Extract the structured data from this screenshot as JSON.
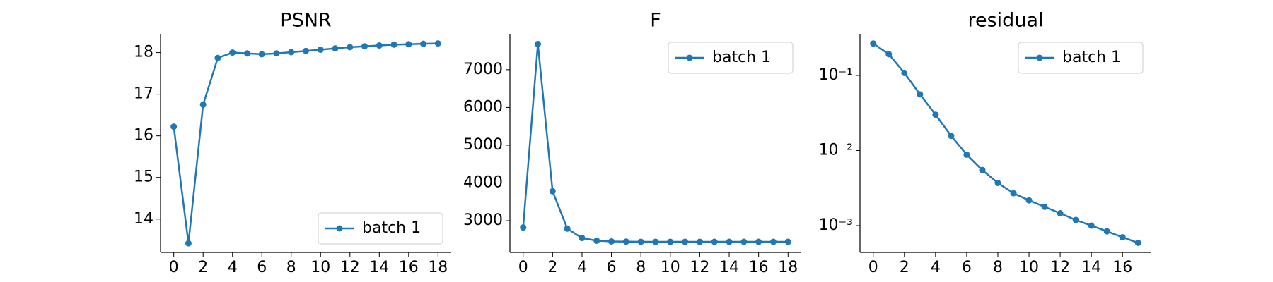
{
  "chart_data": [
    {
      "type": "line",
      "title": "PSNR",
      "x": [
        0,
        1,
        2,
        3,
        4,
        5,
        6,
        7,
        8,
        9,
        10,
        11,
        12,
        13,
        14,
        15,
        16,
        17,
        18
      ],
      "series": [
        {
          "name": "batch 1",
          "color": "#1f77b4",
          "values": [
            16.22,
            13.42,
            16.75,
            17.87,
            18.0,
            17.98,
            17.96,
            17.98,
            18.01,
            18.04,
            18.07,
            18.1,
            18.13,
            18.15,
            18.17,
            18.19,
            18.2,
            18.21,
            18.22
          ]
        }
      ],
      "xlim": [
        -0.9,
        18.9
      ],
      "xticks": [
        0,
        2,
        4,
        6,
        8,
        10,
        12,
        14,
        16,
        18
      ],
      "ylim": [
        13.2,
        18.45
      ],
      "yticks": [
        14,
        15,
        16,
        17,
        18
      ],
      "legend": "lower right"
    },
    {
      "type": "line",
      "title": "F",
      "x": [
        0,
        1,
        2,
        3,
        4,
        5,
        6,
        7,
        8,
        9,
        10,
        11,
        12,
        13,
        14,
        15,
        16,
        17,
        18
      ],
      "series": [
        {
          "name": "batch 1",
          "color": "#1f77b4",
          "values": [
            2820,
            7680,
            3780,
            2790,
            2540,
            2470,
            2450,
            2445,
            2440,
            2440,
            2440,
            2440,
            2440,
            2440,
            2440,
            2440,
            2440,
            2440,
            2440
          ]
        }
      ],
      "xlim": [
        -0.9,
        18.9
      ],
      "xticks": [
        0,
        2,
        4,
        6,
        8,
        10,
        12,
        14,
        16,
        18
      ],
      "ylim": [
        2160,
        7950
      ],
      "yticks": [
        3000,
        4000,
        5000,
        6000,
        7000
      ],
      "legend": "upper right"
    },
    {
      "type": "line",
      "title": "residual",
      "yscale": "log",
      "x": [
        0,
        1,
        2,
        3,
        4,
        5,
        6,
        7,
        8,
        9,
        10,
        11,
        12,
        13,
        14,
        15,
        16,
        17
      ],
      "series": [
        {
          "name": "batch 1",
          "color": "#1f77b4",
          "values": [
            0.266,
            0.192,
            0.108,
            0.056,
            0.03,
            0.0157,
            0.0088,
            0.0055,
            0.0037,
            0.0027,
            0.00217,
            0.00178,
            0.00146,
            0.00119,
            0.001,
            0.00084,
            0.0007,
            0.00059
          ]
        }
      ],
      "xlim": [
        -0.85,
        17.85
      ],
      "xticks": [
        0,
        2,
        4,
        6,
        8,
        10,
        12,
        14,
        16
      ],
      "ylim": [
        0.00044,
        0.358
      ],
      "yticks": [
        {
          "value": 0.1,
          "label": "10⁻¹"
        },
        {
          "value": 0.01,
          "label": "10⁻²"
        },
        {
          "value": 0.001,
          "label": "10⁻³"
        }
      ],
      "legend": "upper right"
    }
  ]
}
